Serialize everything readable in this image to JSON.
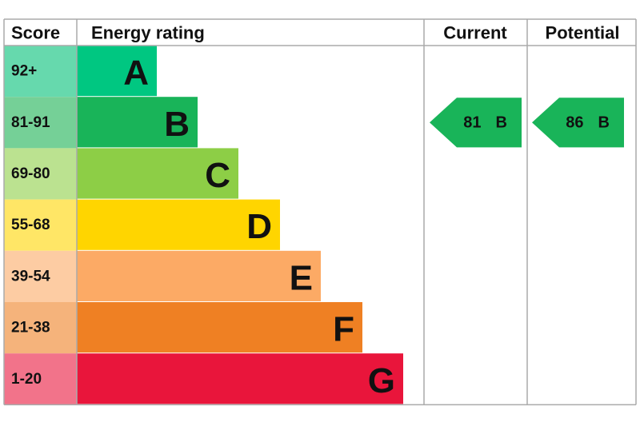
{
  "header": {
    "score": "Score",
    "rating": "Energy rating",
    "current": "Current",
    "potential": "Potential"
  },
  "rows": [
    {
      "score": "92+",
      "band": "A",
      "color": "#00c781",
      "light": "#66d9ad"
    },
    {
      "score": "81-91",
      "band": "B",
      "color": "#19b459",
      "light": "#75d097"
    },
    {
      "score": "69-80",
      "band": "C",
      "color": "#8dce46",
      "light": "#bbe290"
    },
    {
      "score": "55-68",
      "band": "D",
      "color": "#ffd500",
      "light": "#ffe666"
    },
    {
      "score": "39-54",
      "band": "E",
      "color": "#fcaa65",
      "light": "#fdcca3"
    },
    {
      "score": "21-38",
      "band": "F",
      "color": "#ef8023",
      "light": "#f5b37b"
    },
    {
      "score": "1-20",
      "band": "G",
      "color": "#e9153b",
      "light": "#f2738a"
    }
  ],
  "current": {
    "score": 81,
    "band": "B"
  },
  "potential": {
    "score": 86,
    "band": "B"
  }
}
